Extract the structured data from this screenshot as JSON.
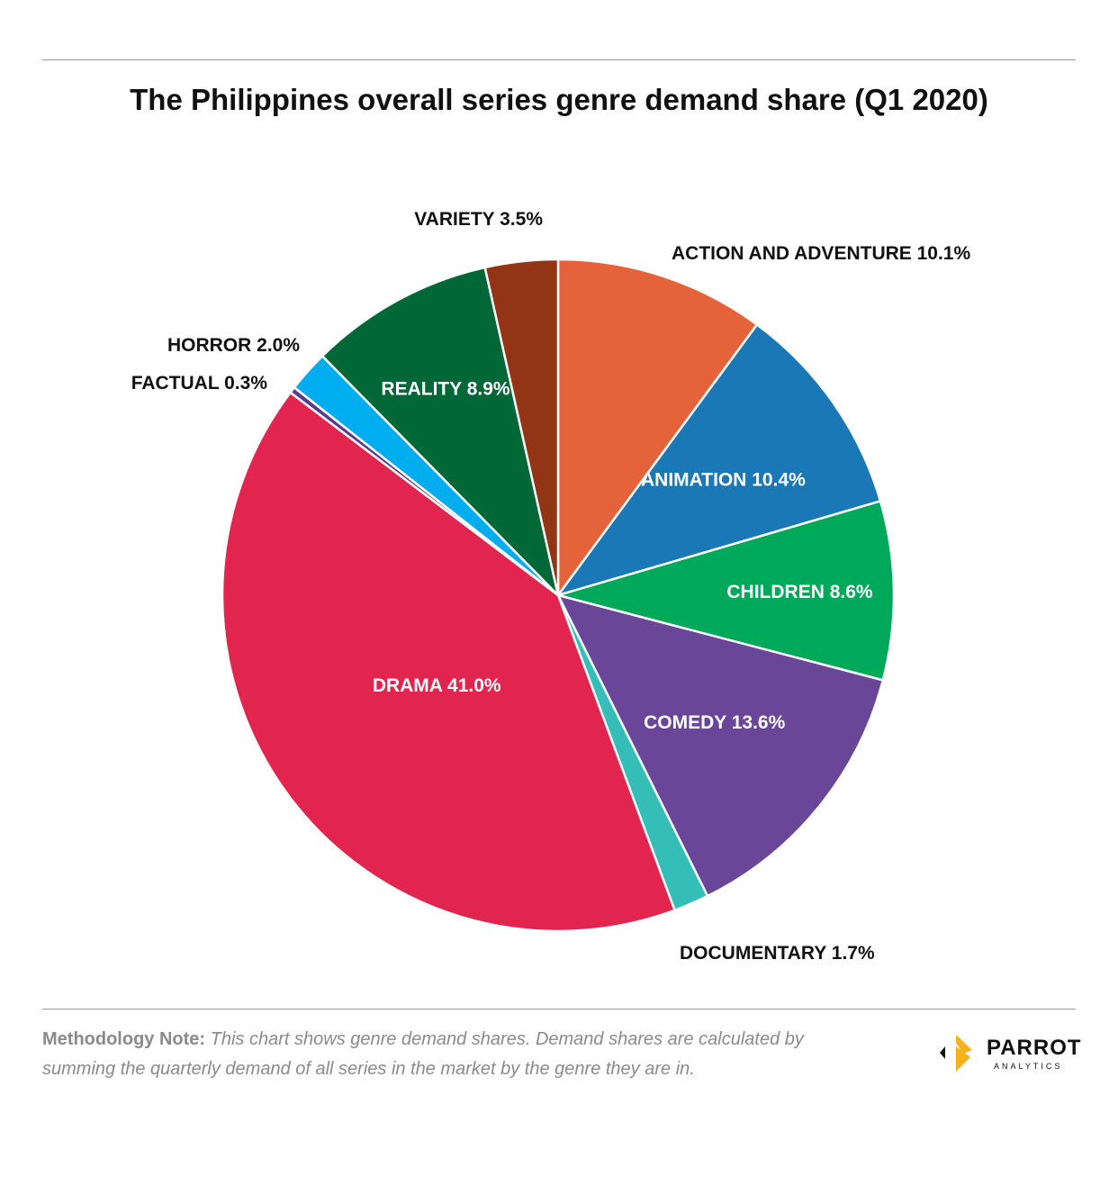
{
  "title": "The Philippines overall series genre demand share (Q1 2020)",
  "chart_data": {
    "type": "pie",
    "title": "The Philippines overall series genre demand share (Q1 2020)",
    "start_direction": "12 o'clock",
    "direction": "clockwise",
    "slices": [
      {
        "name": "ACTION AND ADVENTURE",
        "value": 10.1,
        "label": "ACTION AND ADVENTURE 10.1%",
        "color": "#E5633A",
        "label_pos": "outside",
        "label_color": "dark"
      },
      {
        "name": "ANIMATION",
        "value": 10.4,
        "label": "ANIMATION 10.4%",
        "color": "#1B78B7",
        "label_pos": "inside",
        "label_color": "light"
      },
      {
        "name": "CHILDREN",
        "value": 8.6,
        "label": "CHILDREN 8.6%",
        "color": "#00A859",
        "label_pos": "inside",
        "label_color": "light"
      },
      {
        "name": "COMEDY",
        "value": 13.6,
        "label": "COMEDY 13.6%",
        "color": "#6A4698",
        "label_pos": "inside",
        "label_color": "light"
      },
      {
        "name": "DOCUMENTARY",
        "value": 1.7,
        "label": "DOCUMENTARY 1.7%",
        "color": "#35BEB8",
        "label_pos": "outside",
        "label_color": "dark"
      },
      {
        "name": "DRAMA",
        "value": 41.0,
        "label": "DRAMA 41.0%",
        "color": "#E2254E",
        "label_pos": "inside",
        "label_color": "light"
      },
      {
        "name": "FACTUAL",
        "value": 0.3,
        "label": "FACTUAL 0.3%",
        "color": "#5A3A8A",
        "label_pos": "outside",
        "label_color": "dark"
      },
      {
        "name": "HORROR",
        "value": 2.0,
        "label": "HORROR 2.0%",
        "color": "#00AEEF",
        "label_pos": "outside",
        "label_color": "dark"
      },
      {
        "name": "REALITY",
        "value": 8.9,
        "label": "REALITY 8.9%",
        "color": "#006837",
        "label_pos": "inside",
        "label_color": "light"
      },
      {
        "name": "VARIETY",
        "value": 3.5,
        "label": "VARIETY 3.5%",
        "color": "#923515",
        "label_pos": "outside",
        "label_color": "dark"
      }
    ]
  },
  "footer": {
    "note_lead": "Methodology Note:",
    "note_body": " This chart shows genre demand shares. Demand shares are calculated by summing the quarterly demand of all series in the market by the genre they are in.",
    "logo_word": "PARROT",
    "logo_sub": "ANALYTICS",
    "logo_colors": {
      "gold": "#F5B21B",
      "dark": "#111111"
    }
  }
}
